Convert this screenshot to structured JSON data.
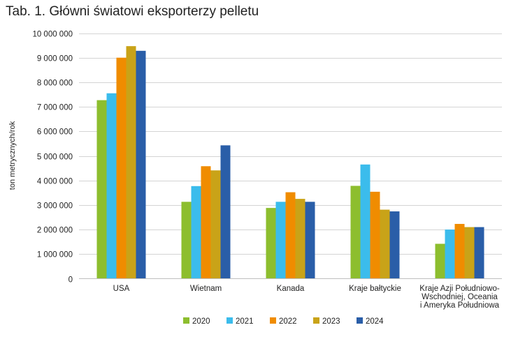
{
  "title": "Tab. 1. Główni światowi eksporterzy pelletu",
  "chart_data": {
    "type": "bar",
    "title": "Tab. 1. Główni światowi eksporterzy pelletu",
    "xlabel": "",
    "ylabel": "ton metrycznych/rok",
    "ylim": [
      0,
      10000000
    ],
    "yticks": [
      0,
      1000000,
      2000000,
      3000000,
      4000000,
      5000000,
      6000000,
      7000000,
      8000000,
      9000000,
      10000000
    ],
    "ytick_labels": [
      "0",
      "1 000 000",
      "2 000 000",
      "3 000 000",
      "4 000 000",
      "5 000 000",
      "6 000 000",
      "7 000 000",
      "8 000 000",
      "9 000 000",
      "10 000 000"
    ],
    "grid": true,
    "legend_position": "bottom",
    "categories": [
      [
        "USA"
      ],
      [
        "Wietnam"
      ],
      [
        "Kanada"
      ],
      [
        "Kraje bałtyckie"
      ],
      [
        "Kraje Azji Południowo-",
        "Wschodniej, Oceania",
        "i Ameryka Południowa"
      ]
    ],
    "series": [
      {
        "name": "2020",
        "color": "#8dbe2e",
        "values": [
          7270000,
          3130000,
          2880000,
          3780000,
          1420000
        ]
      },
      {
        "name": "2021",
        "color": "#3bbcec",
        "values": [
          7550000,
          3770000,
          3130000,
          4650000,
          2000000
        ]
      },
      {
        "name": "2022",
        "color": "#f08c00",
        "values": [
          9000000,
          4580000,
          3520000,
          3540000,
          2230000
        ]
      },
      {
        "name": "2023",
        "color": "#c9a318",
        "values": [
          9470000,
          4410000,
          3250000,
          2810000,
          2100000
        ]
      },
      {
        "name": "2024",
        "color": "#2a5ea8",
        "values": [
          9280000,
          5430000,
          3130000,
          2740000,
          2100000
        ]
      }
    ]
  }
}
